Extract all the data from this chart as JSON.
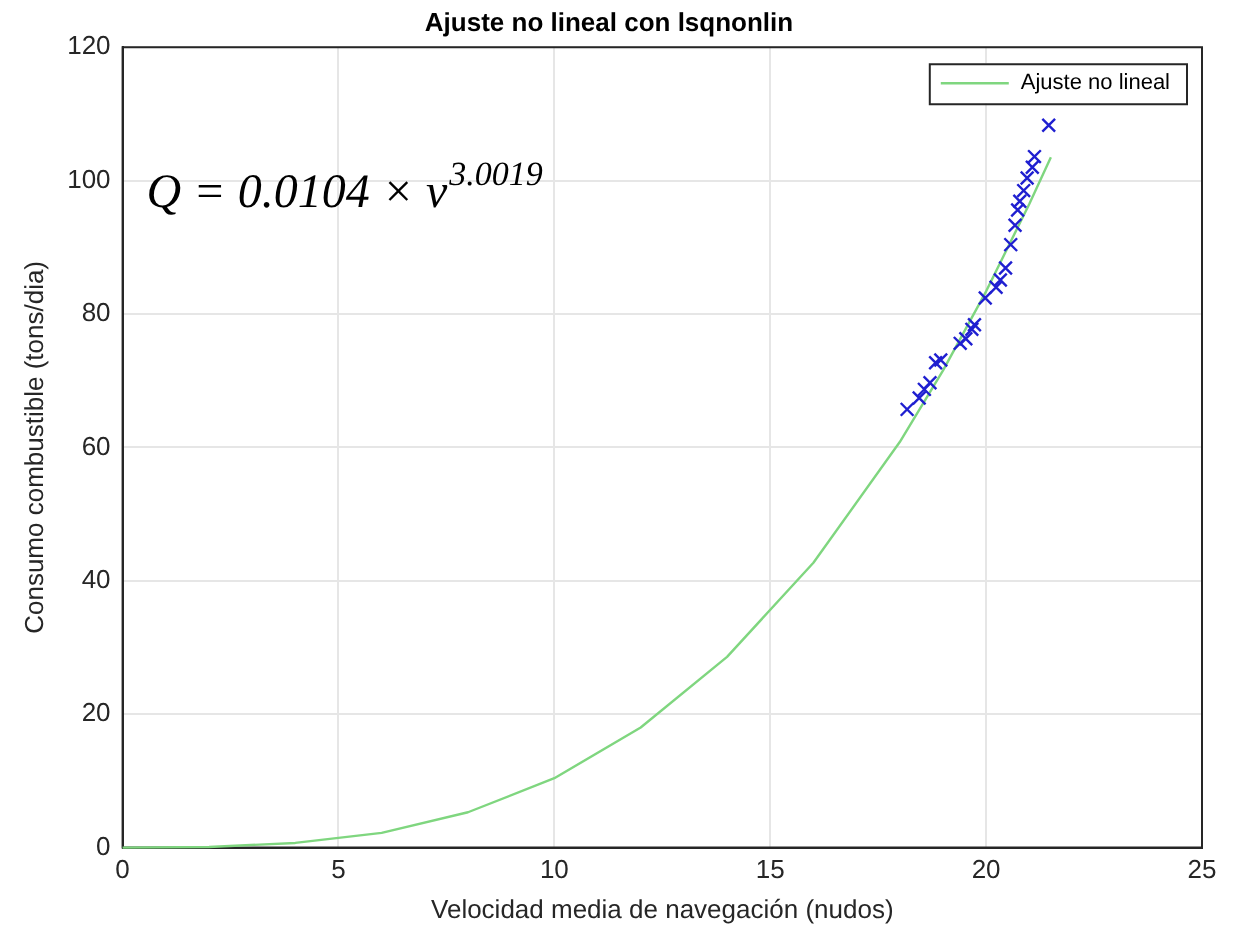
{
  "chart_data": {
    "type": "line",
    "title": "Ajuste no lineal con lsqnonlin",
    "xlabel": "Velocidad media de navegación (nudos)",
    "ylabel": "Consumo combustible (tons/dia)",
    "annotations": [
      "Q = 0.0104 × v$^{3.0019}$"
    ],
    "xlim": [
      0,
      25
    ],
    "xticks": [
      0,
      5,
      10,
      15,
      20,
      25
    ],
    "ylim": [
      0,
      120
    ],
    "yticks": [
      0,
      20,
      40,
      60,
      80,
      100,
      120
    ],
    "grid": true,
    "legend": "top right",
    "series": [
      {
        "type": "scatter",
        "color": "#1f1fd0",
        "marker": "cross",
        "x": [
          18.17,
          18.45,
          18.57,
          18.7,
          18.83,
          18.95,
          19.4,
          19.53,
          19.67,
          19.73,
          19.98,
          20.23,
          20.33,
          20.45,
          20.57,
          20.67,
          20.73,
          20.78,
          20.87,
          20.95,
          21.07,
          21.12,
          21.45
        ],
        "values": [
          65.7,
          67.4,
          68.7,
          69.7,
          72.7,
          73.1,
          75.6,
          76.3,
          77.7,
          78.4,
          82.4,
          84.0,
          85.1,
          86.9,
          90.4,
          93.3,
          95.6,
          96.9,
          98.5,
          100.4,
          102.0,
          103.6,
          108.3
        ]
      },
      {
        "type": "line",
        "name": "Ajuste no lineal",
        "color": "#7fd67f",
        "marker": "none",
        "x": [
          0,
          2,
          4,
          6,
          8,
          10,
          12,
          14,
          16,
          18,
          19,
          20,
          21,
          21.5
        ],
        "values": [
          0,
          0.1,
          0.7,
          2.2,
          5.3,
          10.4,
          18.0,
          28.6,
          42.7,
          60.8,
          71.5,
          83.4,
          96.5,
          103.5
        ]
      }
    ]
  }
}
